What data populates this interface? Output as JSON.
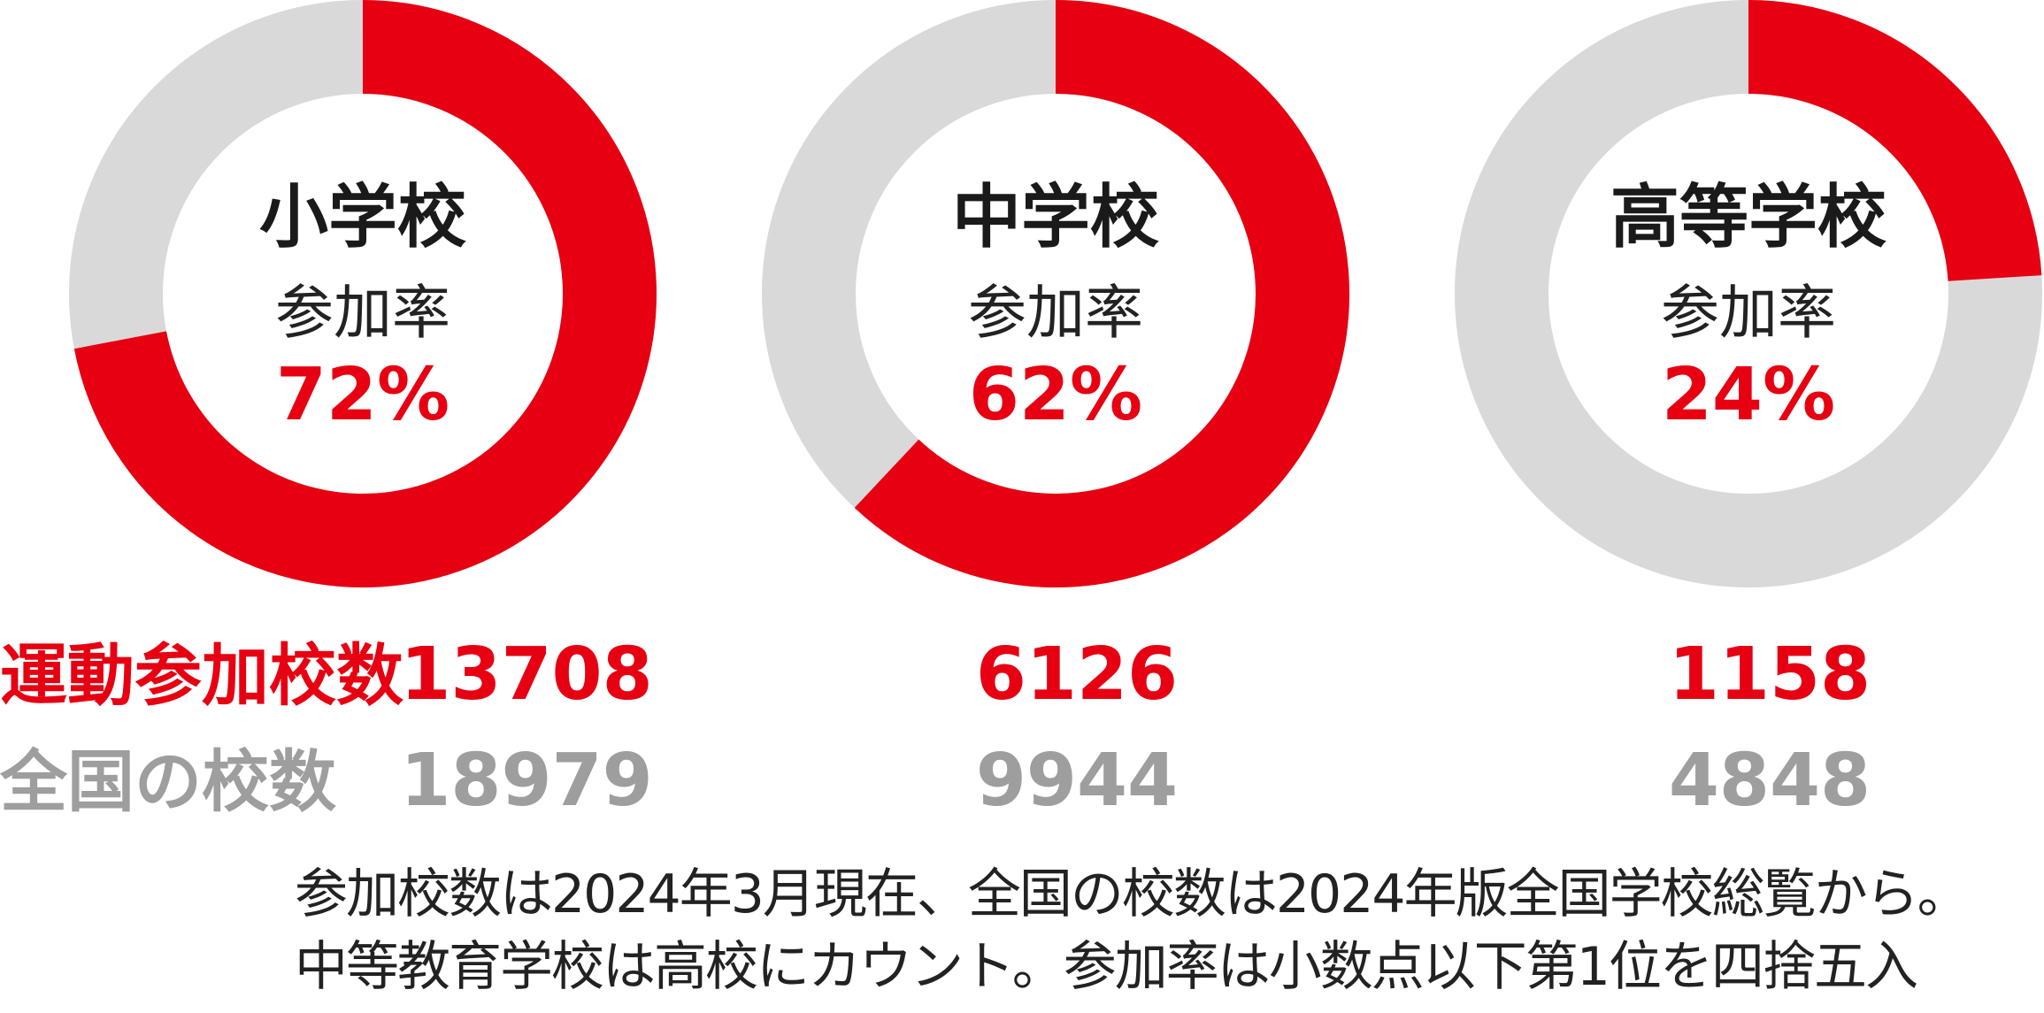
{
  "colors": {
    "accent": "#e60012",
    "track": "#d9d9d9",
    "title": "#1a1a1a",
    "total": "#9e9e9e",
    "text": "#222222"
  },
  "chart_data": {
    "type": "pie",
    "donuts": [
      {
        "title": "小学校",
        "label": "参加率",
        "percent_label": "72%",
        "value": 72,
        "participating": "13708",
        "total": "18979"
      },
      {
        "title": "中学校",
        "label": "参加率",
        "percent_label": "62%",
        "value": 62,
        "participating": "6126",
        "total": "9944"
      },
      {
        "title": "高等学校",
        "label": "参加率",
        "percent_label": "24%",
        "value": 24,
        "participating": "1158",
        "total": "4848"
      }
    ],
    "row_labels": {
      "participating": "運動参加校数",
      "total": "全国の校数"
    }
  },
  "notes": {
    "line1": "参加校数は2024年3月現在、全国の校数は2024年版全国学校総覧から。",
    "line2": "中等教育学校は高校にカウント。参加率は小数点以下第1位を四捨五入"
  }
}
